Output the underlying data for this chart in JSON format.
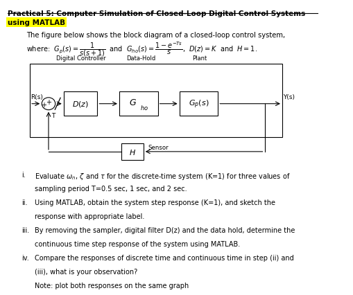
{
  "title_line1": "Practical 5: Computer Simulation of Closed-Loop Digital Control Systems",
  "title_line2": "using MATLAB",
  "bg_color": "#ffffff",
  "highlight_color": "#ffff00",
  "text_color": "#000000",
  "intro_text": "The figure below shows the block diagram of a closed-loop control system,",
  "questions": [
    [
      "i.",
      "Evaluate $\\omega_n$, $\\zeta$ and $\\tau$ for the discrete-time system (K=1) for three values of"
    ],
    [
      "",
      "sampling period T=0.5 sec, 1 sec, and 2 sec."
    ],
    [
      "ii.",
      "Using MATLAB, obtain the system step response (K=1), and sketch the"
    ],
    [
      "",
      "response with appropriate label."
    ],
    [
      "iii.",
      "By removing the sampler, digital filter D(z) and the data hold, determine the"
    ],
    [
      "",
      "continuous time step response of the system using MATLAB."
    ],
    [
      "iv.",
      "Compare the responses of discrete time and continuous time in step (ii) and"
    ],
    [
      "",
      "(iii), what is your observation?"
    ],
    [
      "",
      "Note: plot both responses on the same graph"
    ]
  ]
}
